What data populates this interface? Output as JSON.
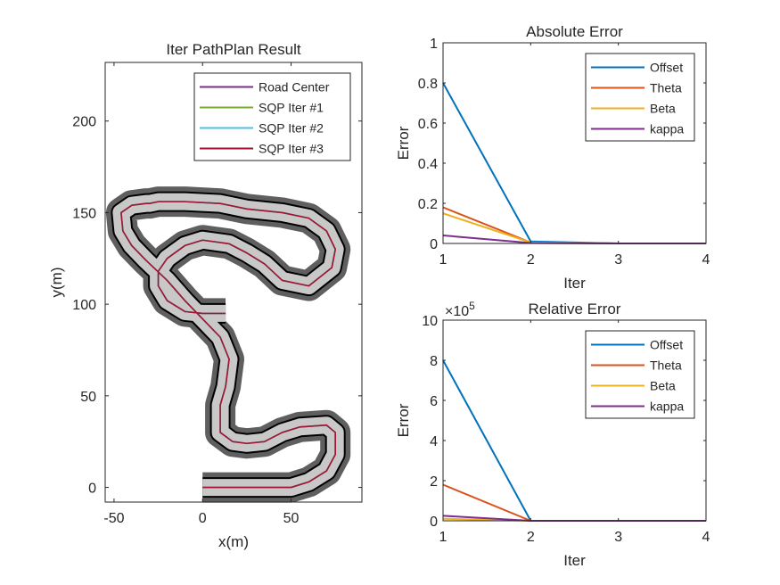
{
  "chart_data": [
    {
      "type": "line",
      "title": "Iter PathPlan Result",
      "xlabel": "x(m)",
      "ylabel": "y(m)",
      "xlim": [
        -55,
        90
      ],
      "ylim": [
        -8,
        232
      ],
      "xticks": [
        -50,
        0,
        50
      ],
      "yticks": [
        0,
        50,
        100,
        150,
        200
      ],
      "legend": {
        "position": "top-right",
        "entries": [
          "Road Center",
          "SQP Iter #1",
          "SQP Iter #2",
          "SQP Iter #3"
        ]
      },
      "colors": {
        "road_outer": "#5f5f5f",
        "road_inner": "#c8c8c8",
        "road_edge": "#000000",
        "path": "#a2142f"
      },
      "series": [
        {
          "name": "Road Center",
          "color": "#7e2f8e",
          "x": [
            0,
            50,
            60,
            70,
            75,
            75,
            70,
            55,
            45,
            35,
            25,
            17,
            10,
            10,
            10,
            13,
            15,
            10,
            0,
            -10,
            -20,
            -32,
            -40,
            -45,
            -46,
            -40,
            -32,
            -30,
            -30,
            -25,
            -10,
            10,
            25,
            45,
            60,
            70,
            75,
            73,
            60,
            45,
            35,
            25,
            15,
            0,
            -10,
            -20,
            -25,
            -25,
            -20,
            -10,
            0,
            10,
            13
          ],
          "y": [
            0,
            0,
            3,
            9,
            18,
            30,
            34,
            33,
            30,
            25,
            24,
            25,
            30,
            36,
            45,
            55,
            70,
            82,
            92,
            102,
            113,
            124,
            132,
            140,
            150,
            154,
            155,
            155,
            155,
            156,
            156,
            155,
            152,
            150,
            147,
            140,
            130,
            120,
            110,
            113,
            122,
            128,
            133,
            135,
            132,
            125,
            118,
            110,
            102,
            96,
            95,
            95,
            95
          ]
        },
        {
          "name": "SQP Iter #1",
          "color": "#77ac30",
          "x": [
            0,
            50,
            60,
            70,
            75,
            75,
            70,
            55,
            45,
            35,
            25,
            17,
            10,
            10,
            10,
            13,
            15,
            10,
            0,
            -10,
            -20,
            -32,
            -40,
            -45,
            -46,
            -40,
            -32,
            -30,
            -30,
            -25,
            -10,
            10,
            25,
            45,
            60,
            70,
            75,
            73,
            60,
            45,
            35,
            25,
            15,
            0,
            -10,
            -20,
            -25,
            -25,
            -20,
            -10,
            0,
            10,
            13
          ],
          "y": [
            0,
            0,
            3,
            9,
            18,
            30,
            34,
            33,
            30,
            25,
            24,
            25,
            30,
            36,
            45,
            55,
            70,
            82,
            92,
            102,
            113,
            124,
            132,
            140,
            150,
            154,
            155,
            155,
            155,
            156,
            156,
            155,
            152,
            150,
            147,
            140,
            130,
            120,
            110,
            113,
            122,
            128,
            133,
            135,
            132,
            125,
            118,
            110,
            102,
            96,
            95,
            95,
            95
          ]
        },
        {
          "name": "SQP Iter #2",
          "color": "#4dbeee",
          "x": [
            0,
            50,
            60,
            70,
            75,
            75,
            70,
            55,
            45,
            35,
            25,
            17,
            10,
            10,
            10,
            13,
            15,
            10,
            0,
            -10,
            -20,
            -32,
            -40,
            -45,
            -46,
            -40,
            -32,
            -30,
            -30,
            -25,
            -10,
            10,
            25,
            45,
            60,
            70,
            75,
            73,
            60,
            45,
            35,
            25,
            15,
            0,
            -10,
            -20,
            -25,
            -25,
            -20,
            -10,
            0,
            10,
            13
          ],
          "y": [
            0,
            0,
            3,
            9,
            18,
            30,
            34,
            33,
            30,
            25,
            24,
            25,
            30,
            36,
            45,
            55,
            70,
            82,
            92,
            102,
            113,
            124,
            132,
            140,
            150,
            154,
            155,
            155,
            155,
            156,
            156,
            155,
            152,
            150,
            147,
            140,
            130,
            120,
            110,
            113,
            122,
            128,
            133,
            135,
            132,
            125,
            118,
            110,
            102,
            96,
            95,
            95,
            95
          ]
        },
        {
          "name": "SQP Iter #3",
          "color": "#a2142f",
          "x": [
            0,
            50,
            60,
            70,
            75,
            75,
            70,
            55,
            45,
            35,
            25,
            17,
            10,
            10,
            10,
            13,
            15,
            10,
            0,
            -10,
            -20,
            -32,
            -40,
            -45,
            -46,
            -40,
            -32,
            -30,
            -30,
            -25,
            -10,
            10,
            25,
            45,
            60,
            70,
            75,
            73,
            60,
            45,
            35,
            25,
            15,
            0,
            -10,
            -20,
            -25,
            -25,
            -20,
            -10,
            0,
            10,
            13
          ],
          "y": [
            0,
            0,
            3,
            9,
            18,
            30,
            34,
            33,
            30,
            25,
            24,
            25,
            30,
            36,
            45,
            55,
            70,
            82,
            92,
            102,
            113,
            124,
            132,
            140,
            150,
            154,
            155,
            155,
            155,
            156,
            156,
            155,
            152,
            150,
            147,
            140,
            130,
            120,
            110,
            113,
            122,
            128,
            133,
            135,
            132,
            125,
            118,
            110,
            102,
            96,
            95,
            95,
            95
          ]
        }
      ],
      "grid": false
    },
    {
      "type": "line",
      "title": "Absolute Error",
      "xlabel": "Iter",
      "ylabel": "Error",
      "x": [
        1,
        2,
        3,
        4
      ],
      "xlim": [
        1,
        4
      ],
      "ylim": [
        0,
        1
      ],
      "xticks": [
        "1",
        "2",
        "3",
        "4"
      ],
      "yticks": [
        "0",
        "0.2",
        "0.4",
        "0.6",
        "0.8",
        "1"
      ],
      "ytick_values": [
        0,
        0.2,
        0.4,
        0.6,
        0.8,
        1
      ],
      "legend": {
        "position": "top-right"
      },
      "series": [
        {
          "name": "Offset",
          "color": "#0072bd",
          "values": [
            0.8,
            0.01,
            0,
            0
          ]
        },
        {
          "name": "Theta",
          "color": "#d95319",
          "values": [
            0.18,
            0.005,
            0,
            0
          ]
        },
        {
          "name": "Beta",
          "color": "#edb120",
          "values": [
            0.15,
            0.005,
            0,
            0
          ]
        },
        {
          "name": "kappa",
          "color": "#7e2f8e",
          "values": [
            0.04,
            0.002,
            0,
            0
          ]
        }
      ],
      "grid": false
    },
    {
      "type": "line",
      "title": "Relative Error",
      "xlabel": "Iter",
      "ylabel": "Error",
      "exponent_label": "×10",
      "exponent_power": "5",
      "x": [
        1,
        2,
        3,
        4
      ],
      "xlim": [
        1,
        4
      ],
      "ylim": [
        0,
        1000000
      ],
      "xticks": [
        "1",
        "2",
        "3",
        "4"
      ],
      "yticks": [
        "0",
        "2",
        "4",
        "6",
        "8",
        "10"
      ],
      "ytick_values": [
        0,
        200000,
        400000,
        600000,
        800000,
        1000000
      ],
      "legend": {
        "position": "top-right"
      },
      "series": [
        {
          "name": "Offset",
          "color": "#0072bd",
          "values": [
            800000,
            0,
            0,
            0
          ]
        },
        {
          "name": "Theta",
          "color": "#d95319",
          "values": [
            180000,
            0,
            0,
            0
          ]
        },
        {
          "name": "Beta",
          "color": "#edb120",
          "values": [
            10000,
            0,
            0,
            0
          ]
        },
        {
          "name": "kappa",
          "color": "#7e2f8e",
          "values": [
            25000,
            0,
            0,
            0
          ]
        }
      ],
      "grid": false
    }
  ]
}
